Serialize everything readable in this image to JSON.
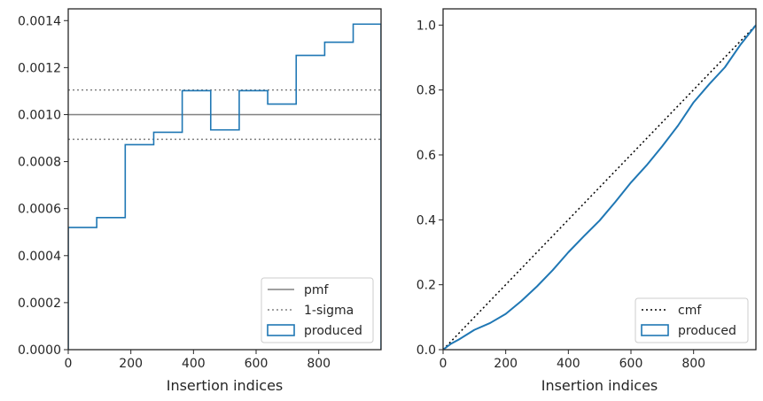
{
  "colors": {
    "histogram": "#1f77b4",
    "reference": "#808080",
    "cmf": "#000000",
    "axes": "#262626",
    "background": "#ffffff"
  },
  "chart_data": [
    {
      "type": "step-histogram",
      "xlabel": "Insertion indices",
      "ylabel": "",
      "xlim": [
        0,
        999
      ],
      "ylim": [
        0,
        0.00145
      ],
      "xticks": [
        "0",
        "200",
        "400",
        "600",
        "800"
      ],
      "yticks": [
        "0.0000",
        "0.0002",
        "0.0004",
        "0.0006",
        "0.0008",
        "0.0010",
        "0.0012",
        "0.0014"
      ],
      "grid": false,
      "legend_location": "lower right",
      "legend": [
        "pmf",
        "1-sigma",
        "produced"
      ],
      "reference_lines": {
        "pmf": 0.001,
        "one_sigma": [
          0.000895,
          0.001105
        ]
      },
      "bin_edges": [
        0,
        91,
        182,
        273,
        364,
        455,
        546,
        637,
        728,
        819,
        910,
        999
      ],
      "values": [
        0.00052,
        0.000562,
        0.000872,
        0.000925,
        0.001102,
        0.000935,
        0.001102,
        0.001045,
        0.001252,
        0.001308,
        0.001385
      ]
    },
    {
      "type": "line",
      "xlabel": "Insertion indices",
      "ylabel": "",
      "xlim": [
        0,
        999
      ],
      "ylim": [
        0,
        1.05
      ],
      "xticks": [
        "0",
        "200",
        "400",
        "600",
        "800"
      ],
      "yticks": [
        "0.0",
        "0.2",
        "0.4",
        "0.6",
        "0.8",
        "1.0"
      ],
      "grid": false,
      "legend_location": "lower right",
      "legend": [
        "cmf",
        "produced"
      ],
      "series": [
        {
          "name": "cmf",
          "x": [
            0,
            999
          ],
          "y": [
            0,
            1.0
          ]
        },
        {
          "name": "produced",
          "x": [
            0,
            25,
            50,
            75,
            100,
            150,
            200,
            250,
            300,
            350,
            400,
            450,
            500,
            550,
            600,
            650,
            700,
            750,
            800,
            850,
            900,
            950,
            999
          ],
          "y": [
            0,
            0.018,
            0.031,
            0.046,
            0.061,
            0.082,
            0.11,
            0.15,
            0.195,
            0.245,
            0.3,
            0.35,
            0.398,
            0.455,
            0.515,
            0.568,
            0.627,
            0.69,
            0.762,
            0.818,
            0.87,
            0.94,
            1.0
          ]
        }
      ]
    }
  ]
}
